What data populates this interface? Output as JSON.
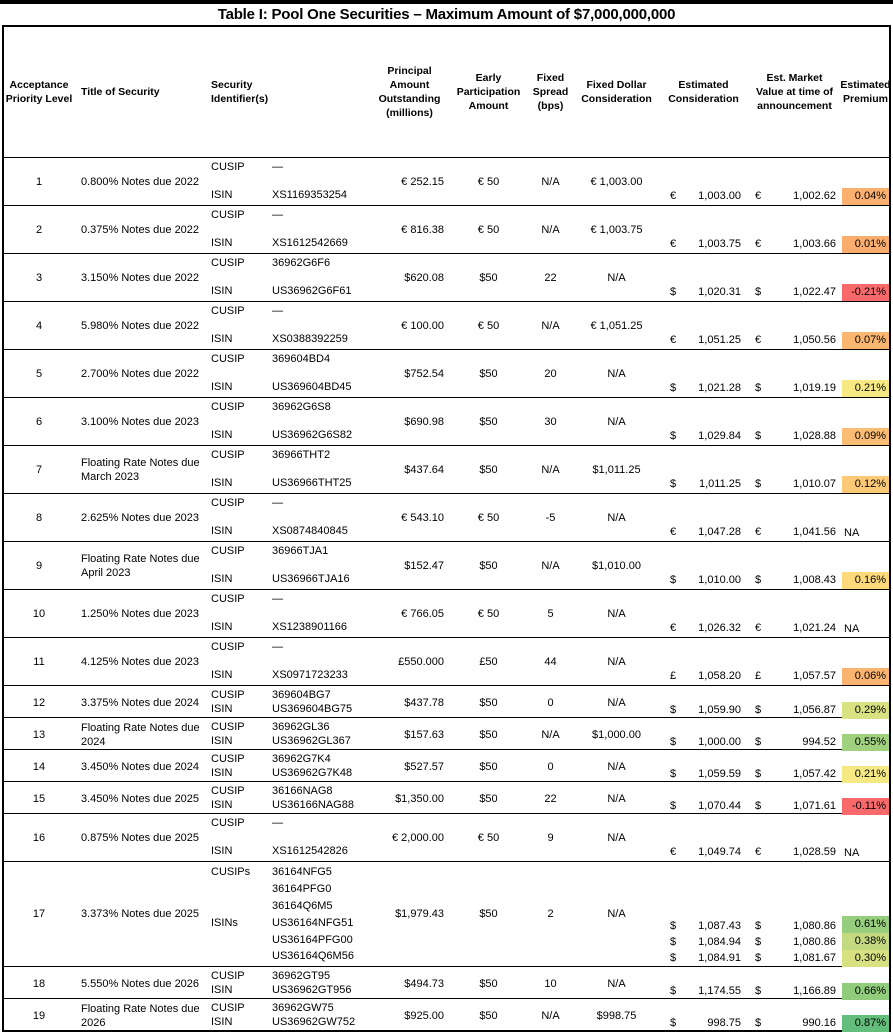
{
  "page_title": "Table I: Pool One Securities – Maximum Amount of $7,000,000,000",
  "header": {
    "acceptance_priority": "Acceptance Priority Level",
    "title_of_security": "Title of Security",
    "security_identifiers": "Security Identifier(s)",
    "principal_amount": "Principal Amount Outstanding (millions)",
    "early_participation": "Early Participation Amount",
    "fixed_spread": "Fixed Spread (bps)",
    "fixed_dollar": "Fixed Dollar Consideration",
    "estimated_consideration": "Estimated Consideration",
    "est_market_value": "Est. Market Value at time of announcement",
    "estimated_premium": "Estimated Premium"
  },
  "rows": [
    {
      "priority": "1",
      "security_title": "0.800% Notes due 2022",
      "size": "tall",
      "identifiers": [
        {
          "label": "CUSIP",
          "value": "—"
        },
        {
          "label": "ISIN",
          "value": "XS1169353254"
        }
      ],
      "principal": "€ 252.15",
      "early_participation": "€ 50",
      "fixed_spread": "N/A",
      "fixed_dollar": "€ 1,003.00",
      "estimated_consideration": [
        {
          "currency": "€",
          "amount": "1,003.00"
        }
      ],
      "est_market_value": [
        {
          "currency": "€",
          "amount": "1,002.62"
        }
      ],
      "estimated_premium": [
        {
          "text": "0.04%",
          "color": "#FBB06F"
        }
      ]
    },
    {
      "priority": "2",
      "security_title": "0.375% Notes due 2022",
      "size": "tall",
      "identifiers": [
        {
          "label": "CUSIP",
          "value": "—"
        },
        {
          "label": "ISIN",
          "value": "XS1612542669"
        }
      ],
      "principal": "€ 816.38",
      "early_participation": "€ 50",
      "fixed_spread": "N/A",
      "fixed_dollar": "€ 1,003.75",
      "estimated_consideration": [
        {
          "currency": "€",
          "amount": "1,003.75"
        }
      ],
      "est_market_value": [
        {
          "currency": "€",
          "amount": "1,003.66"
        }
      ],
      "estimated_premium": [
        {
          "text": "0.01%",
          "color": "#FBAD6E"
        }
      ]
    },
    {
      "priority": "3",
      "security_title": "3.150% Notes due 2022",
      "size": "tall",
      "identifiers": [
        {
          "label": "CUSIP",
          "value": "36962G6F6"
        },
        {
          "label": "ISIN",
          "value": "US36962G6F61"
        }
      ],
      "principal": "$620.08",
      "early_participation": "$50",
      "fixed_spread": "22",
      "fixed_dollar": "N/A",
      "estimated_consideration": [
        {
          "currency": "$",
          "amount": "1,020.31"
        }
      ],
      "est_market_value": [
        {
          "currency": "$",
          "amount": "1,022.47"
        }
      ],
      "estimated_premium": [
        {
          "text": "-0.21%",
          "color": "#F8696B"
        }
      ]
    },
    {
      "priority": "4",
      "security_title": "5.980% Notes due 2022",
      "size": "tall",
      "identifiers": [
        {
          "label": "CUSIP",
          "value": "—"
        },
        {
          "label": "ISIN",
          "value": "XS0388392259"
        }
      ],
      "principal": "€ 100.00",
      "early_participation": "€ 50",
      "fixed_spread": "N/A",
      "fixed_dollar": "€ 1,051.25",
      "estimated_consideration": [
        {
          "currency": "€",
          "amount": "1,051.25"
        }
      ],
      "est_market_value": [
        {
          "currency": "€",
          "amount": "1,050.56"
        }
      ],
      "estimated_premium": [
        {
          "text": "0.07%",
          "color": "#FBB670"
        }
      ]
    },
    {
      "priority": "5",
      "security_title": "2.700% Notes due 2022",
      "size": "tall",
      "identifiers": [
        {
          "label": "CUSIP",
          "value": "369604BD4"
        },
        {
          "label": "ISIN",
          "value": "US369604BD45"
        }
      ],
      "principal": "$752.54",
      "early_participation": "$50",
      "fixed_spread": "20",
      "fixed_dollar": "N/A",
      "estimated_consideration": [
        {
          "currency": "$",
          "amount": "1,021.28"
        }
      ],
      "est_market_value": [
        {
          "currency": "$",
          "amount": "1,019.19"
        }
      ],
      "estimated_premium": [
        {
          "text": "0.21%",
          "color": "#F6E983"
        }
      ]
    },
    {
      "priority": "6",
      "security_title": "3.100% Notes due 2023",
      "size": "tall",
      "identifiers": [
        {
          "label": "CUSIP",
          "value": "36962G6S8"
        },
        {
          "label": "ISIN",
          "value": "US36962G6S82"
        }
      ],
      "principal": "$690.98",
      "early_participation": "$50",
      "fixed_spread": "30",
      "fixed_dollar": "N/A",
      "estimated_consideration": [
        {
          "currency": "$",
          "amount": "1,029.84"
        }
      ],
      "est_market_value": [
        {
          "currency": "$",
          "amount": "1,028.88"
        }
      ],
      "estimated_premium": [
        {
          "text": "0.09%",
          "color": "#FBBD73"
        }
      ]
    },
    {
      "priority": "7",
      "security_title": "Floating Rate Notes due March 2023",
      "size": "tall",
      "identifiers": [
        {
          "label": "CUSIP",
          "value": "36966THT2"
        },
        {
          "label": "ISIN",
          "value": "US36966THT25"
        }
      ],
      "principal": "$437.64",
      "early_participation": "$50",
      "fixed_spread": "N/A",
      "fixed_dollar": "$1,011.25",
      "estimated_consideration": [
        {
          "currency": "$",
          "amount": "1,011.25"
        }
      ],
      "est_market_value": [
        {
          "currency": "$",
          "amount": "1,010.07"
        }
      ],
      "estimated_premium": [
        {
          "text": "0.12%",
          "color": "#FCC976"
        }
      ]
    },
    {
      "priority": "8",
      "security_title": "2.625% Notes due 2023",
      "size": "tall",
      "identifiers": [
        {
          "label": "CUSIP",
          "value": "—"
        },
        {
          "label": "ISIN",
          "value": "XS0874840845"
        }
      ],
      "principal": "€ 543.10",
      "early_participation": "€ 50",
      "fixed_spread": "-5",
      "fixed_dollar": "N/A",
      "estimated_consideration": [
        {
          "currency": "€",
          "amount": "1,047.28"
        }
      ],
      "est_market_value": [
        {
          "currency": "€",
          "amount": "1,041.56"
        }
      ],
      "estimated_premium": [
        {
          "text": "NA",
          "color": null
        }
      ]
    },
    {
      "priority": "9",
      "security_title": "Floating Rate Notes due April 2023",
      "size": "tall",
      "identifiers": [
        {
          "label": "CUSIP",
          "value": "36966TJA1"
        },
        {
          "label": "ISIN",
          "value": "US36966TJA16"
        }
      ],
      "principal": "$152.47",
      "early_participation": "$50",
      "fixed_spread": "N/A",
      "fixed_dollar": "$1,010.00",
      "estimated_consideration": [
        {
          "currency": "$",
          "amount": "1,010.00"
        }
      ],
      "est_market_value": [
        {
          "currency": "$",
          "amount": "1,008.43"
        }
      ],
      "estimated_premium": [
        {
          "text": "0.16%",
          "color": "#FDD97C"
        }
      ]
    },
    {
      "priority": "10",
      "security_title": "1.250% Notes due 2023",
      "size": "tall",
      "identifiers": [
        {
          "label": "CUSIP",
          "value": "—"
        },
        {
          "label": "ISIN",
          "value": "XS1238901166"
        }
      ],
      "principal": "€ 766.05",
      "early_participation": "€ 50",
      "fixed_spread": "5",
      "fixed_dollar": "N/A",
      "estimated_consideration": [
        {
          "currency": "€",
          "amount": "1,026.32"
        }
      ],
      "est_market_value": [
        {
          "currency": "€",
          "amount": "1,021.24"
        }
      ],
      "estimated_premium": [
        {
          "text": "NA",
          "color": null
        }
      ]
    },
    {
      "priority": "11",
      "security_title": "4.125% Notes due 2023",
      "size": "tall",
      "identifiers": [
        {
          "label": "CUSIP",
          "value": "—"
        },
        {
          "label": "ISIN",
          "value": "XS0971723233"
        }
      ],
      "principal": "£550.000",
      "early_participation": "£50",
      "fixed_spread": "44",
      "fixed_dollar": "N/A",
      "estimated_consideration": [
        {
          "currency": "£",
          "amount": "1,058.20"
        }
      ],
      "est_market_value": [
        {
          "currency": "£",
          "amount": "1,057.57"
        }
      ],
      "estimated_premium": [
        {
          "text": "0.06%",
          "color": "#FBB470"
        }
      ]
    },
    {
      "priority": "12",
      "security_title": "3.375% Notes due 2024",
      "size": "short",
      "identifiers": [
        {
          "label": "CUSIP",
          "value": "369604BG7"
        },
        {
          "label": "ISIN",
          "value": "US369604BG75"
        }
      ],
      "principal": "$437.78",
      "early_participation": "$50",
      "fixed_spread": "0",
      "fixed_dollar": "N/A",
      "estimated_consideration": [
        {
          "currency": "$",
          "amount": "1,059.90"
        }
      ],
      "est_market_value": [
        {
          "currency": "$",
          "amount": "1,056.87"
        }
      ],
      "estimated_premium": [
        {
          "text": "0.29%",
          "color": "#D9E283"
        }
      ]
    },
    {
      "priority": "13",
      "security_title": "Floating Rate Notes due 2024",
      "size": "short",
      "identifiers": [
        {
          "label": "CUSIP",
          "value": "36962GL36"
        },
        {
          "label": "ISIN",
          "value": "US36962GL367"
        }
      ],
      "principal": "$157.63",
      "early_participation": "$50",
      "fixed_spread": "N/A",
      "fixed_dollar": "$1,000.00",
      "estimated_consideration": [
        {
          "currency": "$",
          "amount": "1,000.00"
        }
      ],
      "est_market_value": [
        {
          "currency": "$",
          "amount": "994.52"
        }
      ],
      "estimated_premium": [
        {
          "text": "0.55%",
          "color": "#A0D17E"
        }
      ]
    },
    {
      "priority": "14",
      "security_title": "3.450% Notes due 2024",
      "size": "short",
      "identifiers": [
        {
          "label": "CUSIP",
          "value": "36962G7K4"
        },
        {
          "label": "ISIN",
          "value": "US36962G7K48"
        }
      ],
      "principal": "$527.57",
      "early_participation": "$50",
      "fixed_spread": "0",
      "fixed_dollar": "N/A",
      "estimated_consideration": [
        {
          "currency": "$",
          "amount": "1,059.59"
        }
      ],
      "est_market_value": [
        {
          "currency": "$",
          "amount": "1,057.42"
        }
      ],
      "estimated_premium": [
        {
          "text": "0.21%",
          "color": "#F6E983"
        }
      ]
    },
    {
      "priority": "15",
      "security_title": "3.450% Notes due 2025",
      "size": "short",
      "identifiers": [
        {
          "label": "CUSIP",
          "value": "36166NAG8"
        },
        {
          "label": "ISIN",
          "value": "US36166NAG88"
        }
      ],
      "principal": "$1,350.00",
      "early_participation": "$50",
      "fixed_spread": "22",
      "fixed_dollar": "N/A",
      "estimated_consideration": [
        {
          "currency": "$",
          "amount": "1,070.44"
        }
      ],
      "est_market_value": [
        {
          "currency": "$",
          "amount": "1,071.61"
        }
      ],
      "estimated_premium": [
        {
          "text": "-0.11%",
          "color": "#F8696B"
        }
      ]
    },
    {
      "priority": "16",
      "security_title": "0.875% Notes due 2025",
      "size": "tall",
      "identifiers": [
        {
          "label": "CUSIP",
          "value": "—"
        },
        {
          "label": "ISIN",
          "value": "XS1612542826"
        }
      ],
      "principal": "€ 2,000.00",
      "early_participation": "€ 50",
      "fixed_spread": "9",
      "fixed_dollar": "N/A",
      "estimated_consideration": [
        {
          "currency": "€",
          "amount": "1,049.74"
        }
      ],
      "est_market_value": [
        {
          "currency": "€",
          "amount": "1,028.59"
        }
      ],
      "estimated_premium": [
        {
          "text": "NA",
          "color": null
        }
      ]
    },
    {
      "priority": "17",
      "security_title": "3.373% Notes due 2025",
      "size": "multi",
      "identifiers": [
        {
          "label": "CUSIPs",
          "value": "36164NFG5"
        },
        {
          "label": "",
          "value": "36164PFG0"
        },
        {
          "label": "",
          "value": "36164Q6M5"
        },
        {
          "label": "ISINs",
          "value": "US36164NFG51"
        },
        {
          "label": "",
          "value": "US36164PFG00"
        },
        {
          "label": "",
          "value": "US36164Q6M56"
        }
      ],
      "principal": "$1,979.43",
      "early_participation": "$50",
      "fixed_spread": "2",
      "fixed_dollar": "N/A",
      "estimated_consideration": [
        {
          "currency": "$",
          "amount": "1,087.43"
        },
        {
          "currency": "$",
          "amount": "1,084.94"
        },
        {
          "currency": "$",
          "amount": "1,084.91"
        }
      ],
      "est_market_value": [
        {
          "currency": "$",
          "amount": "1,080.86"
        },
        {
          "currency": "$",
          "amount": "1,080.86"
        },
        {
          "currency": "$",
          "amount": "1,081.67"
        }
      ],
      "estimated_premium": [
        {
          "text": "0.61%",
          "color": "#97CE7D"
        },
        {
          "text": "0.38%",
          "color": "#C3DA80"
        },
        {
          "text": "0.30%",
          "color": "#D7E182"
        }
      ]
    },
    {
      "priority": "18",
      "security_title": "5.550% Notes due 2026",
      "size": "short",
      "identifiers": [
        {
          "label": "CUSIP",
          "value": "36962GT95"
        },
        {
          "label": "ISIN",
          "value": "US36962GT956"
        }
      ],
      "principal": "$494.73",
      "early_participation": "$50",
      "fixed_spread": "10",
      "fixed_dollar": "N/A",
      "estimated_consideration": [
        {
          "currency": "$",
          "amount": "1,174.55"
        }
      ],
      "est_market_value": [
        {
          "currency": "$",
          "amount": "1,166.89"
        }
      ],
      "estimated_premium": [
        {
          "text": "0.66%",
          "color": "#90CC7C"
        }
      ]
    },
    {
      "priority": "19",
      "security_title": "Floating Rate Notes due 2026",
      "size": "short",
      "identifiers": [
        {
          "label": "CUSIP",
          "value": "36962GW75"
        },
        {
          "label": "ISIN",
          "value": "US36962GW752"
        }
      ],
      "principal": "$925.00",
      "early_participation": "$50",
      "fixed_spread": "N/A",
      "fixed_dollar": "$998.75",
      "estimated_consideration": [
        {
          "currency": "$",
          "amount": "998.75"
        }
      ],
      "est_market_value": [
        {
          "currency": "$",
          "amount": "990.16"
        }
      ],
      "estimated_premium": [
        {
          "text": "0.87%",
          "color": "#63BE7B"
        }
      ]
    }
  ]
}
